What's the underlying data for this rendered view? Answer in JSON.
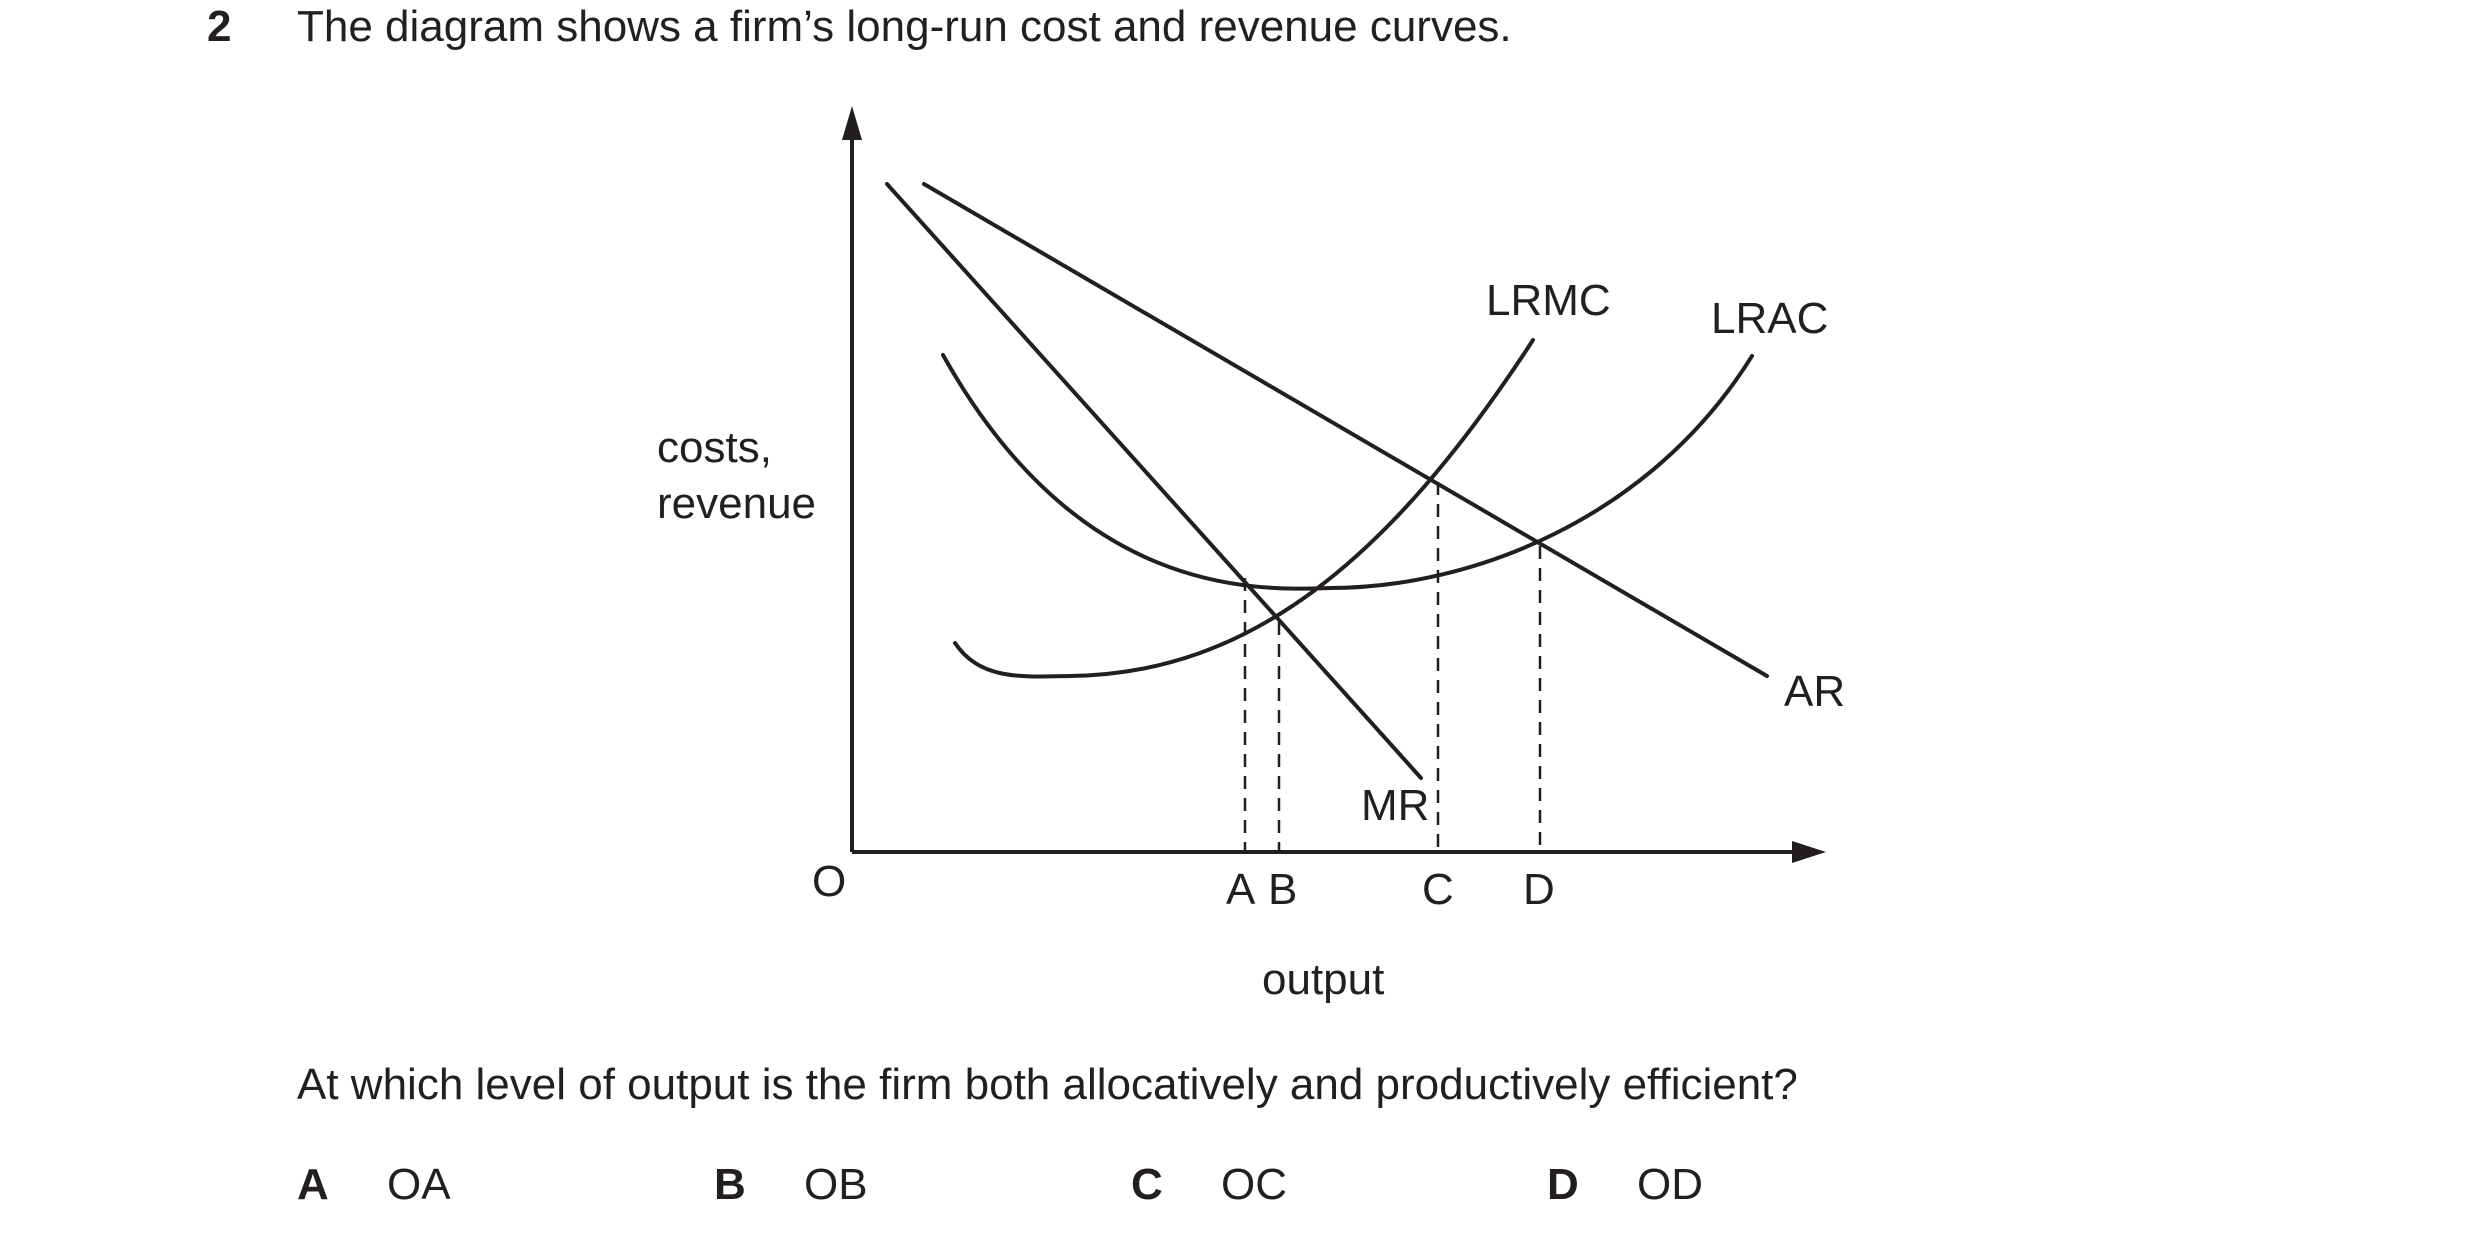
{
  "question": {
    "number": "2",
    "stem": "The diagram shows a firm’s long-run cost and revenue curves.",
    "prompt": "At which level of output is the firm both allocatively and productively efficient?",
    "options": [
      {
        "letter": "A",
        "text": "OA"
      },
      {
        "letter": "B",
        "text": "OB"
      },
      {
        "letter": "C",
        "text": "OC"
      },
      {
        "letter": "D",
        "text": "OD"
      }
    ]
  },
  "diagram": {
    "y_axis_label_line1": "costs,",
    "y_axis_label_line2": "revenue",
    "x_axis_label": "output",
    "origin_label": "O",
    "curve_labels": {
      "lrmc": "LRMC",
      "lrac": "LRAC",
      "ar": "AR",
      "mr": "MR"
    },
    "output_levels": {
      "a": "A",
      "b": "B",
      "c": "C",
      "d": "D"
    },
    "line_color": "#231f20"
  }
}
